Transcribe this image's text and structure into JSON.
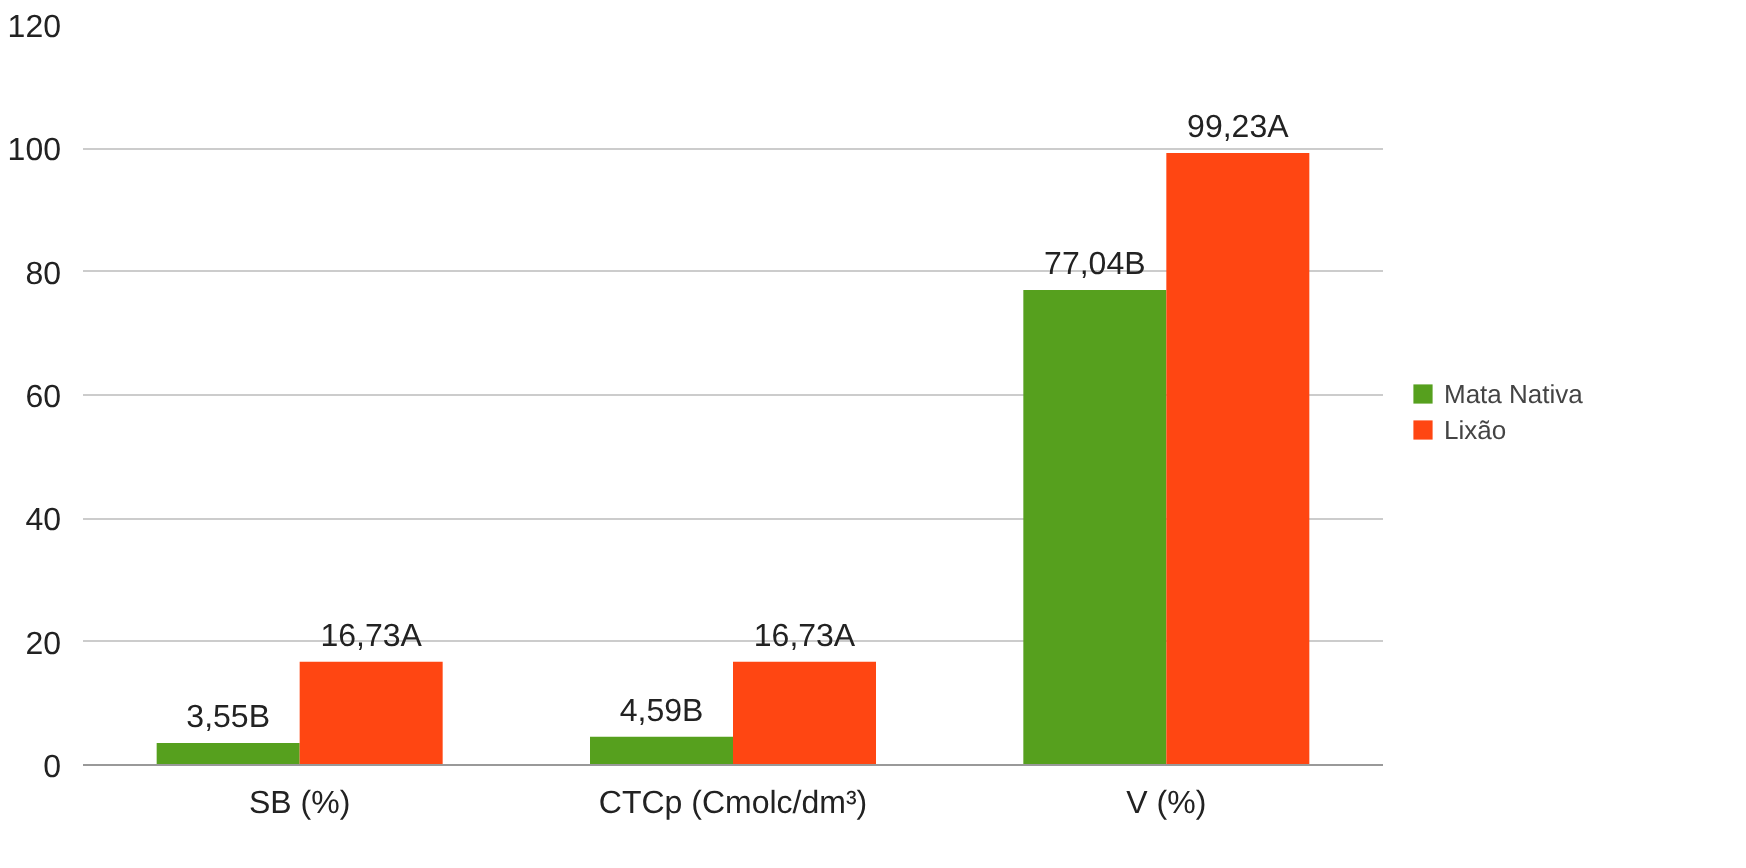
{
  "chart_data": {
    "type": "bar",
    "categories": [
      "SB (%)",
      "CTCp (Cmolc/dm³)",
      "V (%)"
    ],
    "series": [
      {
        "name": "Mata Nativa",
        "color": "#56a01e",
        "values": [
          3.55,
          4.59,
          77.04
        ],
        "value_labels": [
          "3,55B",
          "4,59B",
          "77,04B"
        ]
      },
      {
        "name": "Lixão",
        "color": "#ff4612",
        "values": [
          16.73,
          16.73,
          99.23
        ],
        "value_labels": [
          "16,73A",
          "16,73A",
          "99,23A"
        ]
      }
    ],
    "ylim": [
      0,
      120
    ],
    "yticks": [
      0,
      20,
      40,
      60,
      80,
      100,
      120
    ],
    "grid": "y",
    "legend": "right"
  }
}
